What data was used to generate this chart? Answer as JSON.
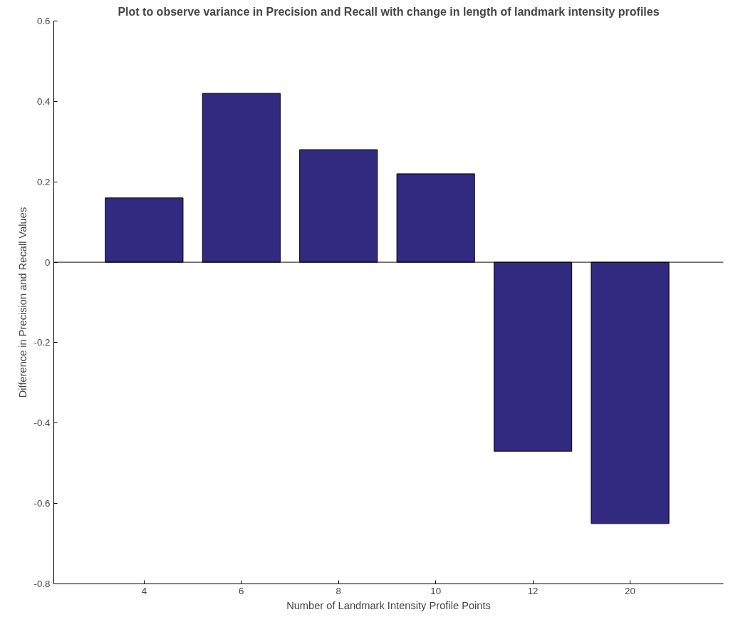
{
  "chart_data": {
    "type": "bar",
    "title": "Plot to observe variance in Precision and Recall with change in length of landmark intensity profiles",
    "xlabel": "Number of Landmark Intensity Profile Points",
    "ylabel": "Difference in Precision and Recall Values",
    "categories": [
      "4",
      "6",
      "8",
      "10",
      "12",
      "20"
    ],
    "series": [
      {
        "color": "#312a80",
        "values": [
          0.16,
          0.42,
          0.28,
          0.22,
          -0.47,
          -0.65
        ]
      }
    ],
    "ylim": [
      -0.8,
      0.6
    ],
    "yticks": [
      -0.8,
      -0.6,
      -0.4,
      -0.2,
      0,
      0.2,
      0.4,
      0.6
    ],
    "grid": false,
    "ref_lines": [
      {
        "axis": "y",
        "value": 0,
        "color": "#000000"
      }
    ]
  }
}
